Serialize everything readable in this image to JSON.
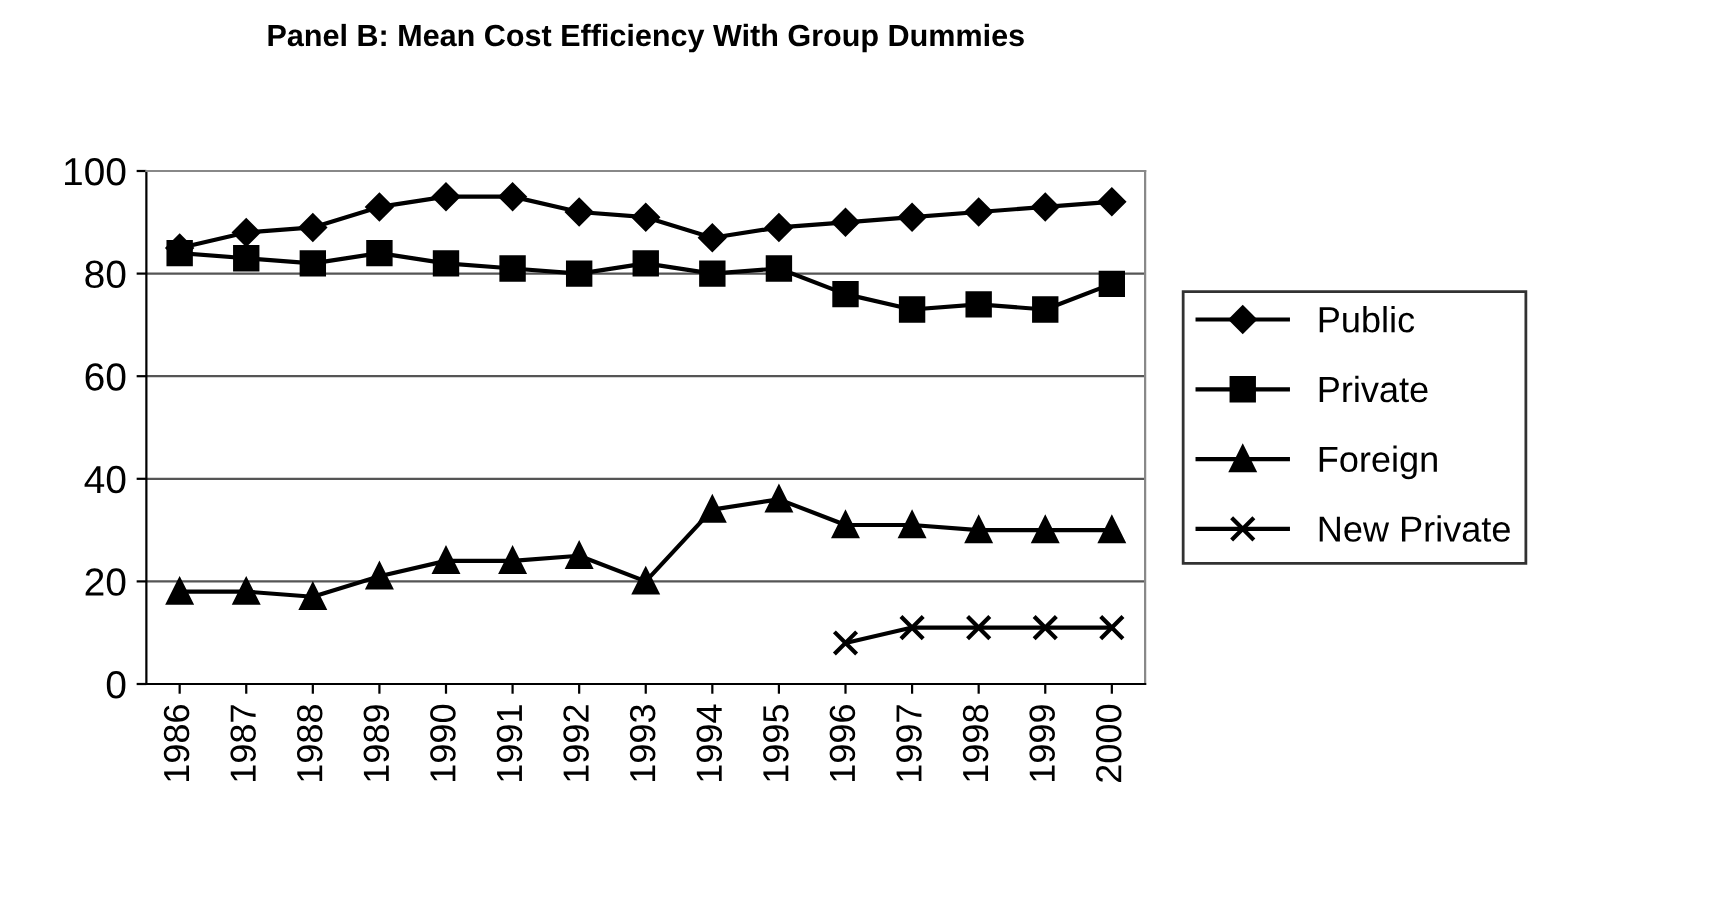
{
  "chart_data": {
    "type": "line",
    "title": "Panel B: Mean Cost Efficiency With Group Dummies",
    "categories": [
      "1986",
      "1987",
      "1988",
      "1989",
      "1990",
      "1991",
      "1992",
      "1993",
      "1994",
      "1995",
      "1996",
      "1997",
      "1998",
      "1999",
      "2000"
    ],
    "series": [
      {
        "name": "Public",
        "color": "#000000",
        "marker": "diamond",
        "values": [
          85,
          88,
          89,
          93,
          95,
          95,
          92,
          91,
          87,
          89,
          90,
          91,
          92,
          93,
          94
        ]
      },
      {
        "name": "Private",
        "color": "#000000",
        "marker": "square",
        "values": [
          84,
          83,
          82,
          84,
          82,
          81,
          80,
          82,
          80,
          81,
          76,
          73,
          74,
          73,
          78
        ]
      },
      {
        "name": "Foreign",
        "color": "#000000",
        "marker": "triangle",
        "values": [
          18,
          18,
          17,
          21,
          24,
          24,
          25,
          20,
          34,
          36,
          31,
          31,
          30,
          30,
          30
        ]
      },
      {
        "name": "New Private",
        "color": "#000000",
        "marker": "cross",
        "values": [
          null,
          null,
          null,
          null,
          null,
          null,
          null,
          null,
          null,
          null,
          8,
          11,
          11,
          11,
          11
        ]
      }
    ],
    "ylim": [
      0,
      100
    ],
    "yticks": [
      0,
      20,
      40,
      60,
      80,
      100
    ],
    "grid": "y",
    "legend": "right",
    "line_style": "solid"
  }
}
